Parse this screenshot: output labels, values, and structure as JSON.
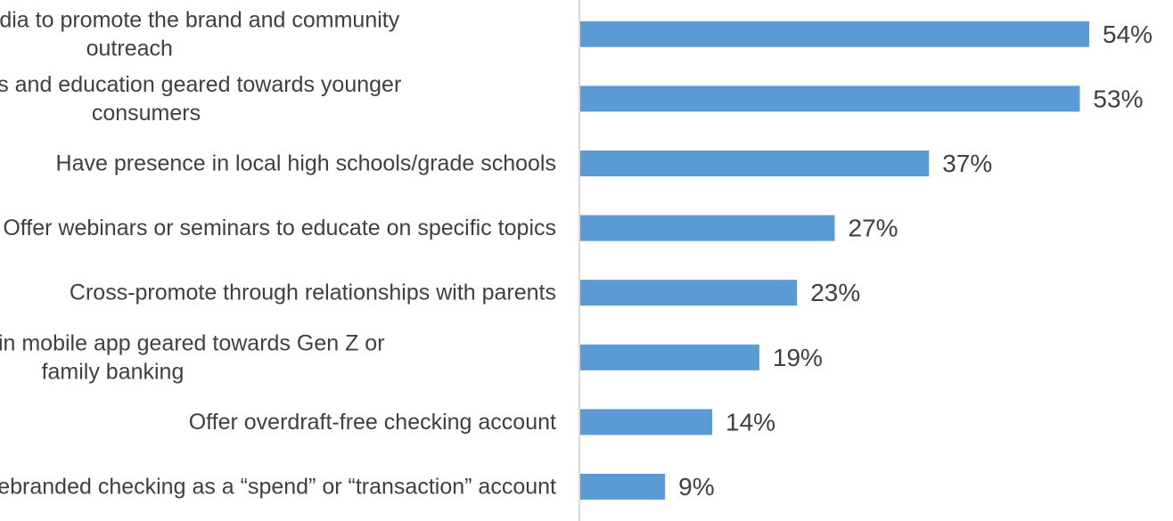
{
  "chart_data": {
    "type": "bar",
    "orientation": "horizontal",
    "categories": [
      "Use social media to promote the brand and community outreach",
      "Online tools and education geared towards younger consumers",
      "Have presence in local high schools/grade schools",
      "Offer webinars or seminars to educate on specific topics",
      "Cross-promote through relationships with parents",
      "Added features in mobile app geared towards Gen Z or family banking",
      "Offer overdraft-free checking account",
      "Rebranded checking as a “spend” or “transaction” account"
    ],
    "category_lines": [
      [
        "Use social media to promote the brand and community",
        "outreach"
      ],
      [
        "Online tools and education geared towards younger",
        "consumers"
      ],
      [
        "Have presence in local high schools/grade schools"
      ],
      [
        "Offer webinars or seminars to educate on specific topics"
      ],
      [
        "Cross-promote through relationships with parents"
      ],
      [
        "Added features in mobile app geared towards Gen Z or",
        "family banking"
      ],
      [
        "Offer overdraft-free checking account"
      ],
      [
        "Rebranded checking as a “spend” or “transaction” account"
      ]
    ],
    "values": [
      54,
      53,
      37,
      27,
      23,
      19,
      14,
      9
    ],
    "value_labels": [
      "54%",
      "53%",
      "37%",
      "27%",
      "23%",
      "19%",
      "14%",
      "9%"
    ],
    "xlim": [
      0,
      60
    ],
    "bar_color": "#5b9bd5",
    "axis_color": "#d9d9d9",
    "text_color": "#404040",
    "grid": false,
    "legend": "none"
  }
}
